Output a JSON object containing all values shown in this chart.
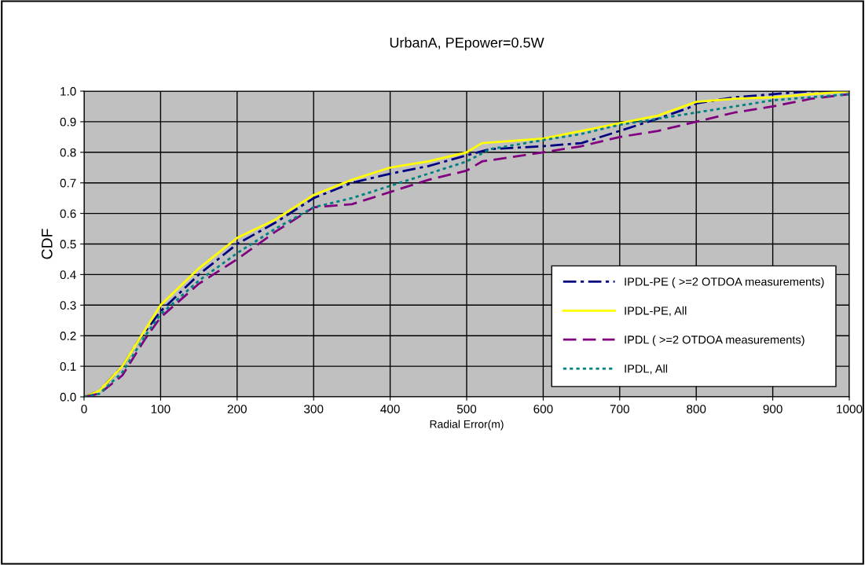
{
  "chart_data": {
    "type": "line",
    "title": "UrbanA, PEpower=0.5W",
    "xlabel": "Radial Error(m)",
    "ylabel": "CDF",
    "xlim": [
      0,
      1000
    ],
    "xticks": [
      0,
      100,
      200,
      300,
      400,
      500,
      600,
      700,
      800,
      900,
      1000
    ],
    "ylim": [
      0,
      1
    ],
    "yticks": [
      {
        "value": 0,
        "label": "0.0"
      },
      {
        "value": 0.1,
        "label": "0.1"
      },
      {
        "value": 0.2,
        "label": "0.2"
      },
      {
        "value": 0.3,
        "label": "0.3"
      },
      {
        "value": 0.4,
        "label": "0.4"
      },
      {
        "value": 0.5,
        "label": "0.5"
      },
      {
        "value": 0.6,
        "label": "0.6"
      },
      {
        "value": 0.7,
        "label": "0.7"
      },
      {
        "value": 0.8,
        "label": "0.8"
      },
      {
        "value": 0.9,
        "label": "0.9"
      },
      {
        "value": 1,
        "label": "1.0"
      }
    ],
    "grid": true,
    "legend": "bottom right",
    "marker": "none",
    "series": [
      {
        "name": "IPDL-PE ( >=2 OTDOA measurements)",
        "color": "#000080",
        "line_style": "dashdot",
        "x": [
          0,
          20,
          50,
          70,
          100,
          150,
          200,
          250,
          300,
          350,
          400,
          450,
          500,
          530,
          600,
          650,
          700,
          750,
          790,
          800,
          850,
          900,
          950,
          1000
        ],
        "values": [
          0,
          0.02,
          0.1,
          0.18,
          0.28,
          0.4,
          0.5,
          0.57,
          0.65,
          0.7,
          0.73,
          0.755,
          0.79,
          0.81,
          0.82,
          0.83,
          0.87,
          0.91,
          0.945,
          0.96,
          0.98,
          0.99,
          1.0,
          1.0
        ]
      },
      {
        "name": "IPDL-PE, All",
        "color": "#ffff00",
        "line_style": "solid",
        "x": [
          0,
          20,
          50,
          70,
          100,
          150,
          200,
          250,
          300,
          350,
          400,
          450,
          500,
          520,
          600,
          650,
          700,
          750,
          800,
          850,
          900,
          950,
          1000
        ],
        "values": [
          0,
          0.02,
          0.1,
          0.18,
          0.3,
          0.42,
          0.52,
          0.58,
          0.66,
          0.71,
          0.75,
          0.77,
          0.8,
          0.83,
          0.845,
          0.87,
          0.895,
          0.92,
          0.965,
          0.975,
          0.98,
          0.99,
          1.0
        ]
      },
      {
        "name": "IPDL ( >=2 OTDOA measurements)",
        "color": "#800080",
        "line_style": "dashed",
        "x": [
          0,
          20,
          50,
          80,
          100,
          150,
          200,
          250,
          300,
          350,
          400,
          450,
          500,
          520,
          600,
          650,
          700,
          750,
          800,
          850,
          900,
          950,
          1000
        ],
        "values": [
          0,
          0.01,
          0.07,
          0.19,
          0.26,
          0.37,
          0.45,
          0.54,
          0.62,
          0.63,
          0.67,
          0.71,
          0.74,
          0.77,
          0.8,
          0.82,
          0.85,
          0.87,
          0.9,
          0.93,
          0.95,
          0.975,
          0.99
        ]
      },
      {
        "name": "IPDL, All",
        "color": "#008080",
        "line_style": "dotted",
        "x": [
          0,
          20,
          50,
          80,
          100,
          150,
          200,
          250,
          300,
          350,
          400,
          450,
          500,
          530,
          600,
          650,
          700,
          750,
          800,
          850,
          900,
          950,
          1000
        ],
        "values": [
          0,
          0.01,
          0.08,
          0.2,
          0.27,
          0.38,
          0.47,
          0.55,
          0.62,
          0.65,
          0.69,
          0.73,
          0.77,
          0.81,
          0.84,
          0.86,
          0.89,
          0.91,
          0.93,
          0.95,
          0.97,
          0.98,
          0.99
        ]
      }
    ]
  }
}
